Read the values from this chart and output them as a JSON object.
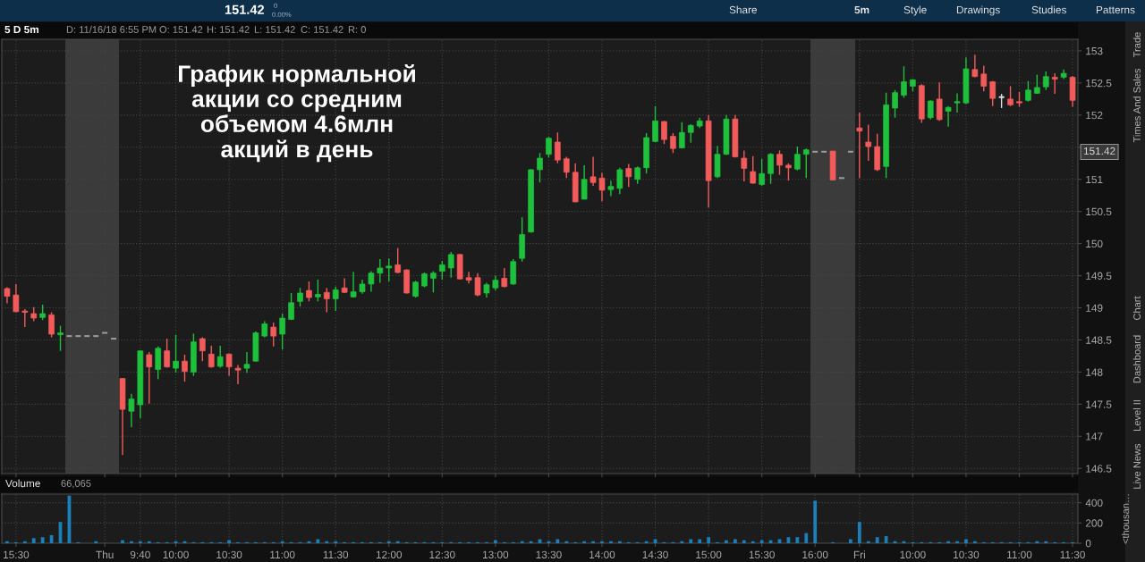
{
  "chart_data": [
    {
      "type": "candlestick",
      "title": "График нормальной\nакции со средним\nобъемом 4.6млн\nакций в день",
      "categories": [
        null,
        null,
        null,
        null,
        null,
        null,
        null,
        null,
        null,
        null,
        null,
        null,
        null,
        null,
        null,
        null,
        null,
        null,
        null,
        null,
        null,
        null,
        null,
        null,
        null,
        null,
        null,
        null,
        null,
        null,
        null,
        null,
        null,
        null,
        null,
        null,
        null,
        null,
        null,
        null,
        null,
        null,
        null,
        null,
        null,
        null,
        null,
        null,
        null,
        null,
        null,
        null,
        null,
        null,
        null,
        null,
        null,
        null,
        null,
        null,
        null,
        null,
        null,
        null,
        null,
        null,
        null,
        null,
        null,
        null,
        null,
        null,
        null,
        null,
        null,
        null,
        null,
        null,
        null,
        null,
        null,
        null,
        null,
        null,
        null,
        null,
        null,
        null,
        null,
        null,
        null,
        null,
        null,
        null,
        null,
        null,
        null,
        null,
        null,
        null,
        null,
        null,
        null,
        null,
        null,
        null,
        null,
        null,
        null,
        null,
        null,
        null,
        null,
        null,
        null,
        null,
        null,
        null,
        null,
        null,
        null
      ],
      "ohlc": [
        [
          149.3,
          149.32,
          149.07,
          149.18
        ],
        [
          149.2,
          149.37,
          148.93,
          148.94
        ],
        [
          148.95,
          148.98,
          148.7,
          148.93
        ],
        [
          148.91,
          149.01,
          148.79,
          148.84
        ],
        [
          148.85,
          149.05,
          148.81,
          148.91
        ],
        [
          148.89,
          148.93,
          148.54,
          148.59
        ],
        [
          148.58,
          148.72,
          148.33,
          148.61
        ],
        [
          148.56,
          148.56,
          148.56,
          148.56
        ],
        [
          148.56,
          148.56,
          148.56,
          148.56
        ],
        [
          148.56,
          148.56,
          148.56,
          148.56
        ],
        [
          148.56,
          148.56,
          148.56,
          148.56
        ],
        [
          148.61,
          148.61,
          148.61,
          148.61
        ],
        [
          148.52,
          148.52,
          148.52,
          148.52
        ],
        [
          147.9,
          147.91,
          146.71,
          147.42
        ],
        [
          147.39,
          147.66,
          147.14,
          147.58
        ],
        [
          147.49,
          148.33,
          147.28,
          148.33
        ],
        [
          148.27,
          148.31,
          147.51,
          148.08
        ],
        [
          148.04,
          148.4,
          147.89,
          148.37
        ],
        [
          148.33,
          148.52,
          148.07,
          148.08
        ],
        [
          148.06,
          148.58,
          147.99,
          148.17
        ],
        [
          148.17,
          148.27,
          147.85,
          148.01
        ],
        [
          148.0,
          148.6,
          147.94,
          148.47
        ],
        [
          148.52,
          148.54,
          148.17,
          148.33
        ],
        [
          148.28,
          148.41,
          148.07,
          148.08
        ],
        [
          148.09,
          148.41,
          148.07,
          148.24
        ],
        [
          148.28,
          148.29,
          147.94,
          148.08
        ],
        [
          148.06,
          148.11,
          147.81,
          148.03
        ],
        [
          148.06,
          148.31,
          147.99,
          148.12
        ],
        [
          148.17,
          148.63,
          148.16,
          148.61
        ],
        [
          148.56,
          148.79,
          148.54,
          148.75
        ],
        [
          148.7,
          148.77,
          148.4,
          148.56
        ],
        [
          148.59,
          148.91,
          148.35,
          148.84
        ],
        [
          148.82,
          149.23,
          148.81,
          149.08
        ],
        [
          149.1,
          149.31,
          149.02,
          149.23
        ],
        [
          149.27,
          149.41,
          149.1,
          149.16
        ],
        [
          149.17,
          149.44,
          149.1,
          149.21
        ],
        [
          149.24,
          149.31,
          148.93,
          149.14
        ],
        [
          149.14,
          149.33,
          148.95,
          149.28
        ],
        [
          149.31,
          149.46,
          149.23,
          149.24
        ],
        [
          149.17,
          149.56,
          149.16,
          149.25
        ],
        [
          149.25,
          149.44,
          149.22,
          149.37
        ],
        [
          149.37,
          149.57,
          149.25,
          149.54
        ],
        [
          149.54,
          149.76,
          149.39,
          149.62
        ],
        [
          149.62,
          149.77,
          149.41,
          149.65
        ],
        [
          149.67,
          149.93,
          149.54,
          149.55
        ],
        [
          149.59,
          149.6,
          149.22,
          149.23
        ],
        [
          149.18,
          149.42,
          149.16,
          149.4
        ],
        [
          149.34,
          149.55,
          149.32,
          149.53
        ],
        [
          149.46,
          149.57,
          149.24,
          149.54
        ],
        [
          149.57,
          149.73,
          149.44,
          149.67
        ],
        [
          149.62,
          149.87,
          149.47,
          149.83
        ],
        [
          149.83,
          149.84,
          149.44,
          149.45
        ],
        [
          149.47,
          149.56,
          149.38,
          149.43
        ],
        [
          149.47,
          149.54,
          149.18,
          149.2
        ],
        [
          149.23,
          149.39,
          149.16,
          149.36
        ],
        [
          149.31,
          149.5,
          149.27,
          149.43
        ],
        [
          149.46,
          149.62,
          149.32,
          149.33
        ],
        [
          149.37,
          149.76,
          149.36,
          149.72
        ],
        [
          149.77,
          150.41,
          149.72,
          150.14
        ],
        [
          150.18,
          151.16,
          150.17,
          151.15
        ],
        [
          151.15,
          151.41,
          150.95,
          151.33
        ],
        [
          151.39,
          151.66,
          151.34,
          151.64
        ],
        [
          151.58,
          151.73,
          151.25,
          151.3
        ],
        [
          151.32,
          151.35,
          151.02,
          151.11
        ],
        [
          151.11,
          151.25,
          150.64,
          150.65
        ],
        [
          150.69,
          151.22,
          150.69,
          151.0
        ],
        [
          151.04,
          151.35,
          150.9,
          150.95
        ],
        [
          151.02,
          151.1,
          150.66,
          150.83
        ],
        [
          150.84,
          150.98,
          150.74,
          150.89
        ],
        [
          150.86,
          151.18,
          150.77,
          151.15
        ],
        [
          151.17,
          151.24,
          150.88,
          151.04
        ],
        [
          151.0,
          151.2,
          150.93,
          151.18
        ],
        [
          151.18,
          151.72,
          151.09,
          151.65
        ],
        [
          151.59,
          152.14,
          151.58,
          151.91
        ],
        [
          151.9,
          151.91,
          151.55,
          151.62
        ],
        [
          151.67,
          151.72,
          151.41,
          151.48
        ],
        [
          151.49,
          151.89,
          151.48,
          151.73
        ],
        [
          151.73,
          151.86,
          151.57,
          151.84
        ],
        [
          151.83,
          151.96,
          151.8,
          151.91
        ],
        [
          151.91,
          152.0,
          150.56,
          150.98
        ],
        [
          151.04,
          151.52,
          151.02,
          151.39
        ],
        [
          151.39,
          152.0,
          151.38,
          151.94
        ],
        [
          151.94,
          152.0,
          151.34,
          151.35
        ],
        [
          151.33,
          151.45,
          150.97,
          151.17
        ],
        [
          151.12,
          151.36,
          150.93,
          150.94
        ],
        [
          150.92,
          151.32,
          150.9,
          151.09
        ],
        [
          151.09,
          151.41,
          150.93,
          151.39
        ],
        [
          151.39,
          151.45,
          151.07,
          151.22
        ],
        [
          151.22,
          151.25,
          150.98,
          151.18
        ],
        [
          151.16,
          151.51,
          151.14,
          151.39
        ],
        [
          151.39,
          151.48,
          151.02,
          151.46
        ],
        [
          151.43,
          151.43,
          151.43,
          151.43
        ],
        [
          151.43,
          151.43,
          151.43,
          151.43
        ],
        [
          151.44,
          151.44,
          150.99,
          150.99
        ],
        [
          151.02,
          151.02,
          151.02,
          151.02
        ],
        [
          151.43,
          151.43,
          151.43,
          151.43
        ],
        [
          151.8,
          152.04,
          151.02,
          151.75
        ],
        [
          151.58,
          151.85,
          151.29,
          151.51
        ],
        [
          151.51,
          151.71,
          151.13,
          151.15
        ],
        [
          151.2,
          152.35,
          151.02,
          152.16
        ],
        [
          152.11,
          152.39,
          151.96,
          152.35
        ],
        [
          152.31,
          152.76,
          152.27,
          152.52
        ],
        [
          152.45,
          152.56,
          152.37,
          152.55
        ],
        [
          152.46,
          152.48,
          151.88,
          151.94
        ],
        [
          151.96,
          152.23,
          151.93,
          152.22
        ],
        [
          152.25,
          152.51,
          151.91,
          151.93
        ],
        [
          152.06,
          152.14,
          151.82,
          152.12
        ],
        [
          152.19,
          152.34,
          152.04,
          152.21
        ],
        [
          152.19,
          152.9,
          152.17,
          152.72
        ],
        [
          152.71,
          152.94,
          152.59,
          152.6
        ],
        [
          152.64,
          152.77,
          152.37,
          152.45
        ],
        [
          152.52,
          152.53,
          152.14,
          152.26
        ],
        [
          152.28,
          152.33,
          152.11,
          152.28
        ],
        [
          152.25,
          152.45,
          152.14,
          152.16
        ],
        [
          152.21,
          152.36,
          152.13,
          152.19
        ],
        [
          152.23,
          152.53,
          152.21,
          152.39
        ],
        [
          152.34,
          152.63,
          152.33,
          152.43
        ],
        [
          152.44,
          152.68,
          152.39,
          152.6
        ],
        [
          152.59,
          152.65,
          152.33,
          152.56
        ],
        [
          152.59,
          152.71,
          152.56,
          152.65
        ],
        [
          152.59,
          152.61,
          152.13,
          152.23
        ]
      ],
      "colors": [
        "#f35b5b",
        "#f35b5b",
        "#f35b5b",
        "#f35b5b",
        "#1ec13c",
        "#f35b5b",
        "#1ec13c",
        "#9a9a9a",
        "#9a9a9a",
        "#9a9a9a",
        "#9a9a9a",
        "#9a9a9a",
        "#9a9a9a",
        "#f35b5b",
        "#1ec13c",
        "#1ec13c",
        "#f35b5b",
        "#1ec13c",
        "#f35b5b",
        "#1ec13c",
        "#f35b5b",
        "#1ec13c",
        "#f35b5b",
        "#f35b5b",
        "#1ec13c",
        "#f35b5b",
        "#f35b5b",
        "#1ec13c",
        "#1ec13c",
        "#1ec13c",
        "#f35b5b",
        "#1ec13c",
        "#1ec13c",
        "#1ec13c",
        "#f35b5b",
        "#1ec13c",
        "#f35b5b",
        "#1ec13c",
        "#f35b5b",
        "#1ec13c",
        "#1ec13c",
        "#1ec13c",
        "#1ec13c",
        "#1ec13c",
        "#f35b5b",
        "#f35b5b",
        "#1ec13c",
        "#1ec13c",
        "#1ec13c",
        "#1ec13c",
        "#1ec13c",
        "#f35b5b",
        "#f35b5b",
        "#f35b5b",
        "#1ec13c",
        "#1ec13c",
        "#f35b5b",
        "#1ec13c",
        "#1ec13c",
        "#1ec13c",
        "#1ec13c",
        "#1ec13c",
        "#f35b5b",
        "#f35b5b",
        "#f35b5b",
        "#1ec13c",
        "#f35b5b",
        "#f35b5b",
        "#1ec13c",
        "#1ec13c",
        "#f35b5b",
        "#1ec13c",
        "#1ec13c",
        "#1ec13c",
        "#f35b5b",
        "#f35b5b",
        "#1ec13c",
        "#1ec13c",
        "#1ec13c",
        "#f35b5b",
        "#1ec13c",
        "#1ec13c",
        "#f35b5b",
        "#f35b5b",
        "#f35b5b",
        "#1ec13c",
        "#1ec13c",
        "#f35b5b",
        "#f35b5b",
        "#1ec13c",
        "#1ec13c",
        "#9a9a9a",
        "#9a9a9a",
        "#f35b5b",
        "#9a9a9a",
        "#9a9a9a",
        "#f35b5b",
        "#f35b5b",
        "#f35b5b",
        "#1ec13c",
        "#1ec13c",
        "#1ec13c",
        "#1ec13c",
        "#f35b5b",
        "#1ec13c",
        "#f35b5b",
        "#1ec13c",
        "#1ec13c",
        "#1ec13c",
        "#f35b5b",
        "#f35b5b",
        "#f35b5b",
        "#dcdcdc",
        "#f35b5b",
        "#f35b5b",
        "#1ec13c",
        "#1ec13c",
        "#1ec13c",
        "#f35b5b",
        "#1ec13c",
        "#f35b5b"
      ],
      "ylim": [
        146.42,
        153.18
      ],
      "yticks": [
        146.5,
        147,
        147.5,
        148,
        148.5,
        149,
        149.5,
        150,
        150.5,
        151,
        {
          "value": 151.5,
          "label": null
        },
        152,
        152.5,
        153
      ],
      "grid": true,
      "tick_labels": "y",
      "annotations": [
        "5 D 5m",
        "D: 11/16/18 6:55 PM",
        "O: 151.42",
        "H: 151.42",
        "L: 151.42",
        "C: 151.42",
        "R: 0",
        "151.42",
        "0",
        "0.00%",
        "Share",
        "5m",
        "Style",
        "Drawings",
        "Studies",
        "Patterns",
        "Trade",
        "Times And Sales",
        "Chart",
        "Dashboard",
        "Level II",
        "Live News",
        "151.42"
      ]
    },
    {
      "type": "bar",
      "title": "Volume",
      "categories": [
        null,
        "15:30",
        null,
        null,
        null,
        null,
        null,
        null,
        null,
        null,
        null,
        "Thu",
        null,
        null,
        null,
        "9:40",
        null,
        null,
        null,
        "10:00",
        null,
        null,
        null,
        null,
        null,
        "10:30",
        null,
        null,
        null,
        null,
        null,
        "11:00",
        null,
        null,
        null,
        null,
        null,
        "11:30",
        null,
        null,
        null,
        null,
        null,
        "12:00",
        null,
        null,
        null,
        null,
        null,
        "12:30",
        null,
        null,
        null,
        null,
        null,
        "13:00",
        null,
        null,
        null,
        null,
        null,
        "13:30",
        null,
        null,
        null,
        null,
        null,
        "14:00",
        null,
        null,
        null,
        null,
        null,
        "14:30",
        null,
        null,
        null,
        null,
        null,
        "15:00",
        null,
        null,
        null,
        null,
        null,
        "15:30",
        null,
        null,
        null,
        null,
        null,
        "16:00",
        null,
        null,
        null,
        null,
        "Fri",
        null,
        null,
        null,
        null,
        null,
        "10:00",
        null,
        null,
        null,
        null,
        null,
        "10:30",
        null,
        null,
        null,
        null,
        null,
        "11:00",
        null,
        null,
        null,
        null,
        null,
        "11:30"
      ],
      "values": [
        20,
        10,
        20,
        50,
        60,
        80,
        210,
        470,
        10,
        0,
        20,
        0,
        0,
        30,
        20,
        20,
        20,
        10,
        10,
        20,
        20,
        10,
        10,
        10,
        10,
        30,
        10,
        10,
        10,
        10,
        10,
        20,
        10,
        10,
        20,
        40,
        20,
        20,
        10,
        10,
        10,
        10,
        10,
        20,
        20,
        10,
        10,
        10,
        10,
        10,
        10,
        10,
        10,
        10,
        10,
        30,
        10,
        10,
        20,
        20,
        40,
        20,
        40,
        20,
        10,
        20,
        20,
        20,
        20,
        20,
        10,
        10,
        20,
        40,
        10,
        10,
        20,
        40,
        40,
        60,
        10,
        30,
        40,
        30,
        20,
        30,
        30,
        40,
        60,
        60,
        100,
        420,
        0,
        10,
        0,
        40,
        210,
        20,
        60,
        70,
        20,
        20,
        10,
        10,
        10,
        10,
        20,
        20,
        40,
        20,
        10,
        10,
        10,
        10,
        10,
        10,
        20,
        20,
        10,
        10,
        10
      ],
      "color": "#1b7fba",
      "ylim": [
        0,
        485
      ],
      "yticks": [
        0,
        200,
        400
      ],
      "ylabel": "<thousan…",
      "grid": true,
      "annotations": [
        "66,065"
      ]
    }
  ]
}
